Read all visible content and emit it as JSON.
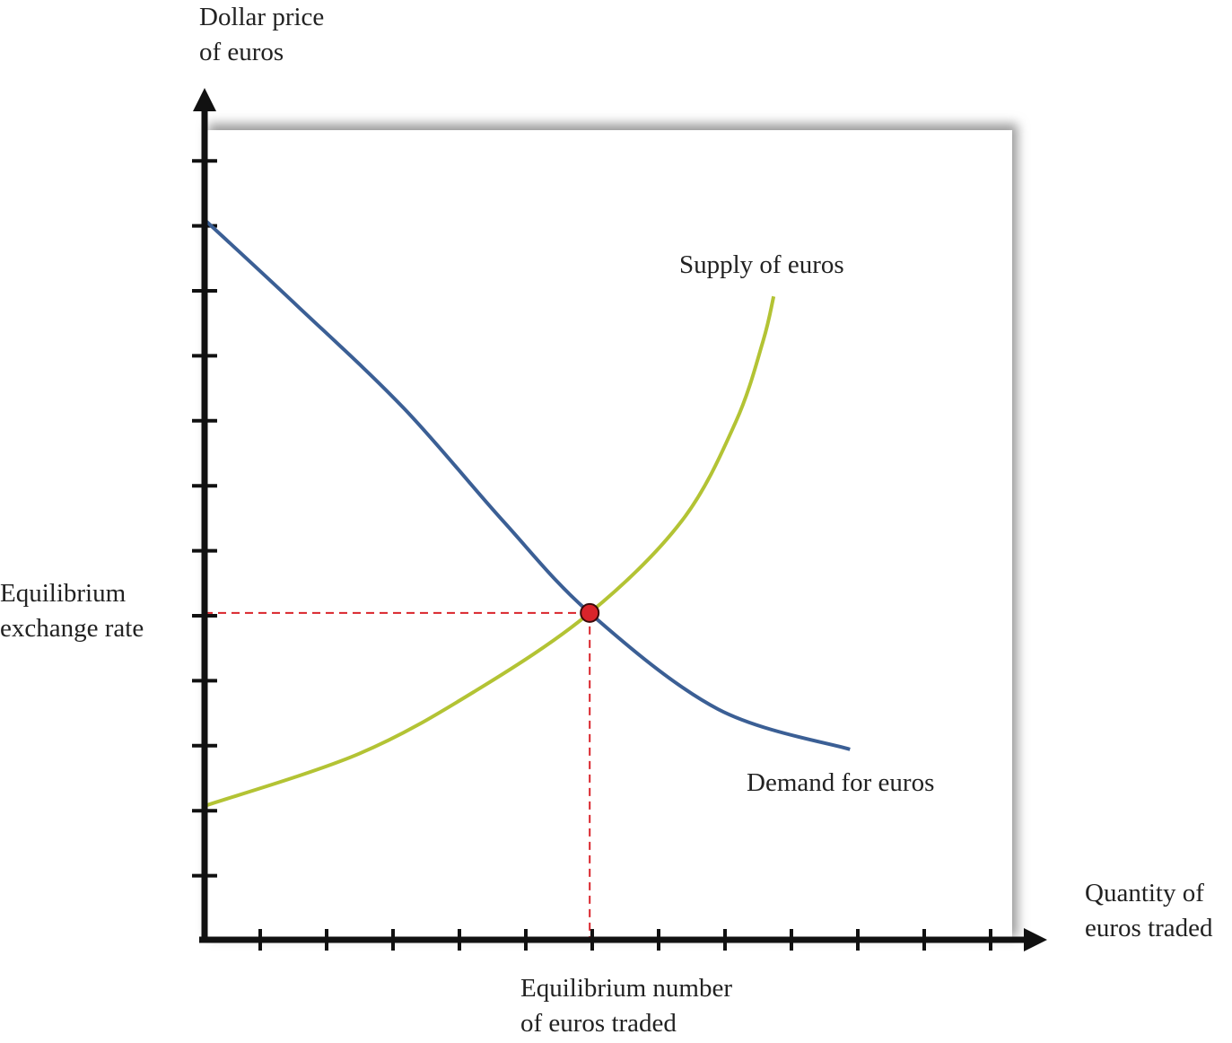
{
  "chart_data": {
    "type": "line",
    "title": "",
    "ylabel": "Dollar price\nof euros",
    "xlabel": "Quantity of\neuros traded",
    "xlim": [
      0,
      12.2
    ],
    "ylim": [
      0,
      12.4
    ],
    "x_ticks": [
      1,
      2,
      3,
      4,
      5,
      6,
      7,
      8,
      9,
      10,
      11,
      12
    ],
    "y_ticks": [
      1,
      2,
      3,
      4,
      5,
      6,
      7,
      8,
      9,
      10,
      11,
      12
    ],
    "tick_labels_shown": false,
    "grid": false,
    "series": [
      {
        "name": "Demand for euros",
        "color": "#3b5f95",
        "points": [
          [
            0,
            11.08
          ],
          [
            1.38,
            9.77
          ],
          [
            3.0,
            8.18
          ],
          [
            4.49,
            6.45
          ],
          [
            5.8,
            5.03
          ],
          [
            7.73,
            3.55
          ],
          [
            9.72,
            2.93
          ]
        ]
      },
      {
        "name": "Supply of euros",
        "color": "#b3c334",
        "points": [
          [
            0,
            2.06
          ],
          [
            2.32,
            2.86
          ],
          [
            4.08,
            3.83
          ],
          [
            5.8,
            5.03
          ],
          [
            7.19,
            6.45
          ],
          [
            8.0,
            7.97
          ],
          [
            8.41,
            9.21
          ],
          [
            8.57,
            9.9
          ]
        ]
      }
    ],
    "equilibrium": {
      "x": 5.8,
      "y": 5.03,
      "color": "#d9242b"
    },
    "annotations": {
      "equilibrium_price": "Equilibrium\nexchange rate",
      "equilibrium_quantity": "Equilibrium number\nof euros traded"
    }
  }
}
